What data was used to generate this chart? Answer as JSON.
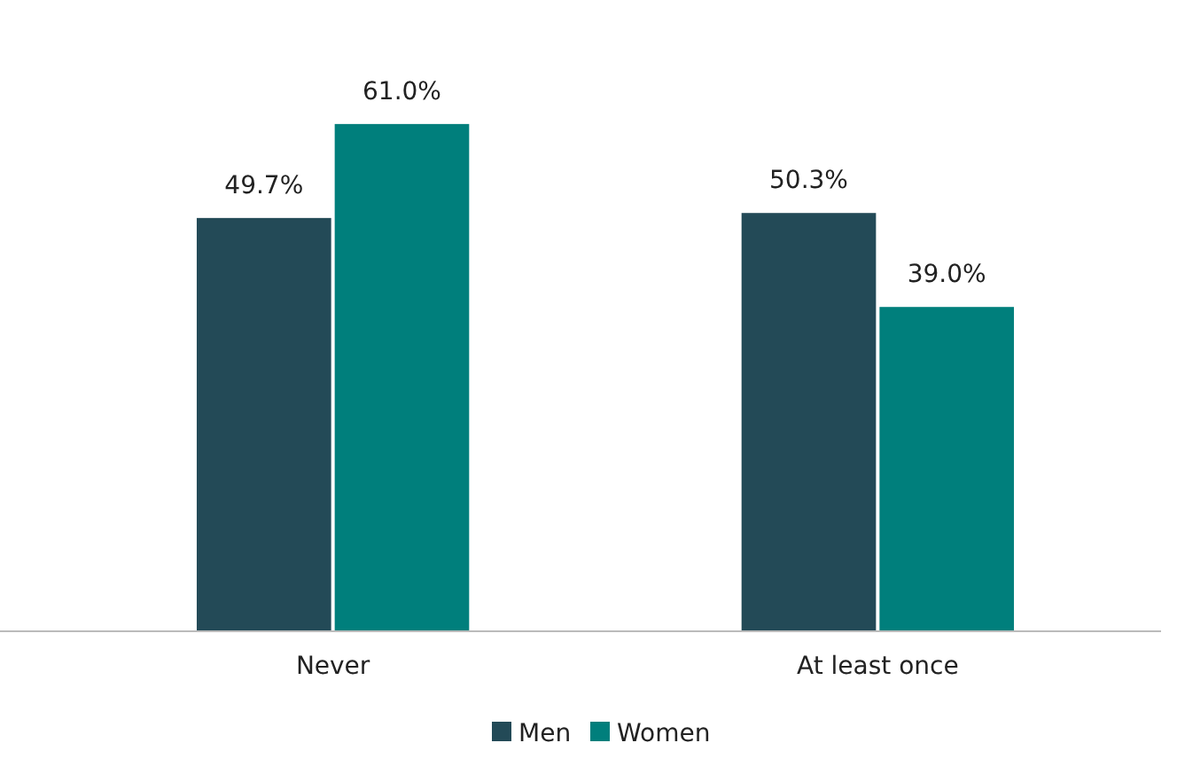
{
  "chart_data": {
    "type": "bar",
    "categories": [
      "Never",
      "At least once"
    ],
    "series": [
      {
        "name": "Men",
        "color": "#234a57",
        "values": [
          49.7,
          50.3
        ],
        "value_labels": [
          "49.7%",
          "50.3%"
        ]
      },
      {
        "name": "Women",
        "color": "#007f7c",
        "values": [
          61.0,
          39.0
        ],
        "value_labels": [
          "61.0%",
          "39.0%"
        ]
      }
    ],
    "legend": "bottom",
    "grid": false
  }
}
